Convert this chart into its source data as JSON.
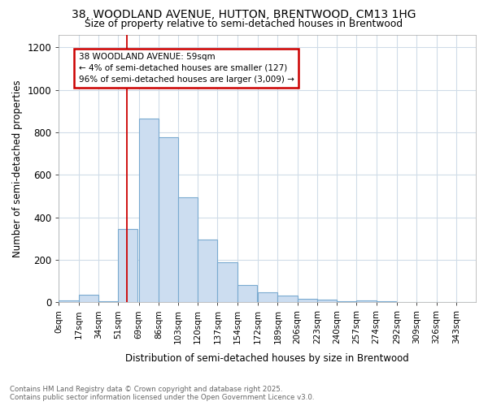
{
  "title1": "38, WOODLAND AVENUE, HUTTON, BRENTWOOD, CM13 1HG",
  "title2": "Size of property relative to semi-detached houses in Brentwood",
  "xlabel": "Distribution of semi-detached houses by size in Brentwood",
  "ylabel": "Number of semi-detached properties",
  "bin_labels": [
    "0sqm",
    "17sqm",
    "34sqm",
    "51sqm",
    "69sqm",
    "86sqm",
    "103sqm",
    "120sqm",
    "137sqm",
    "154sqm",
    "172sqm",
    "189sqm",
    "206sqm",
    "223sqm",
    "240sqm",
    "257sqm",
    "274sqm",
    "292sqm",
    "309sqm",
    "326sqm",
    "343sqm"
  ],
  "bin_edges": [
    0,
    17,
    34,
    51,
    69,
    86,
    103,
    120,
    137,
    154,
    172,
    189,
    206,
    223,
    240,
    257,
    274,
    292,
    309,
    326,
    343
  ],
  "bar_heights": [
    8,
    35,
    5,
    345,
    865,
    775,
    495,
    295,
    190,
    80,
    45,
    30,
    18,
    12,
    5,
    8,
    4,
    1,
    1,
    1,
    0
  ],
  "bar_color": "#ccddf0",
  "bar_edge_color": "#7aaad0",
  "red_line_x": 59,
  "annotation_title": "38 WOODLAND AVENUE: 59sqm",
  "annotation_line1": "← 4% of semi-detached houses are smaller (127)",
  "annotation_line2": "96% of semi-detached houses are larger (3,009) →",
  "annotation_box_facecolor": "#ffffff",
  "annotation_border_color": "#cc0000",
  "ylim": [
    0,
    1260
  ],
  "yticks": [
    0,
    200,
    400,
    600,
    800,
    1000,
    1200
  ],
  "footer_line1": "Contains HM Land Registry data © Crown copyright and database right 2025.",
  "footer_line2": "Contains public sector information licensed under the Open Government Licence v3.0.",
  "bg_color": "#ffffff",
  "plot_bg_color": "#ffffff",
  "grid_color": "#d0dce8"
}
